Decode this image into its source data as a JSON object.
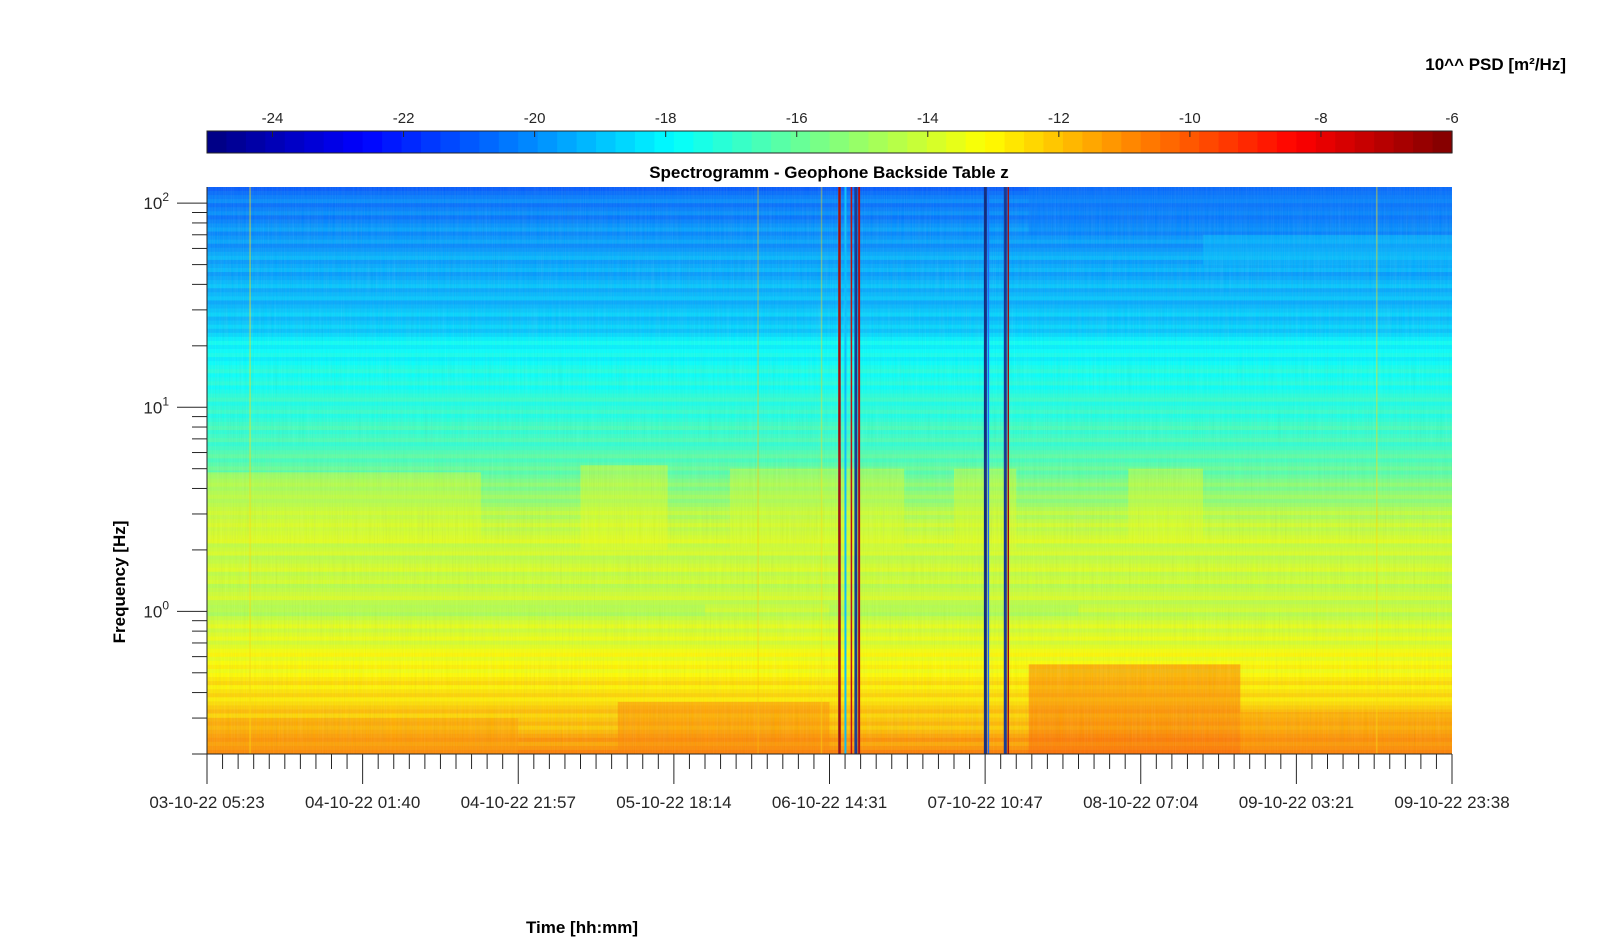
{
  "chart_data": {
    "type": "heatmap",
    "title": "Spectrogramm - Geophone Backside Table z",
    "xlabel": "Time [hh:mm]",
    "ylabel": "Frequency [Hz]",
    "y_scale": "log",
    "ylim": [
      0.2,
      120
    ],
    "colorbar": {
      "title": "10^^ PSD [m²/Hz]",
      "colormap": "jet",
      "range": [
        -25,
        -6
      ],
      "ticks": [
        "-24",
        "-22",
        "-20",
        "-18",
        "-16",
        "-14",
        "-12",
        "-10",
        "-8",
        "-6"
      ],
      "tick_values": [
        -24,
        -22,
        -20,
        -18,
        -16,
        -14,
        -12,
        -10,
        -8,
        -6
      ]
    },
    "x_tick_labels": [
      "03-10-22 05:23",
      "04-10-22 01:40",
      "04-10-22 21:57",
      "05-10-22 18:14",
      "06-10-22 14:31",
      "07-10-22 10:47",
      "08-10-22 07:04",
      "09-10-22 03:21",
      "09-10-22 23:38"
    ],
    "y_ticks": [
      {
        "base": "10",
        "exp": "2",
        "value": 100
      },
      {
        "base": "10",
        "exp": "1",
        "value": 10
      },
      {
        "base": "10",
        "exp": "0",
        "value": 1
      }
    ],
    "grid": false,
    "legend": "none"
  }
}
